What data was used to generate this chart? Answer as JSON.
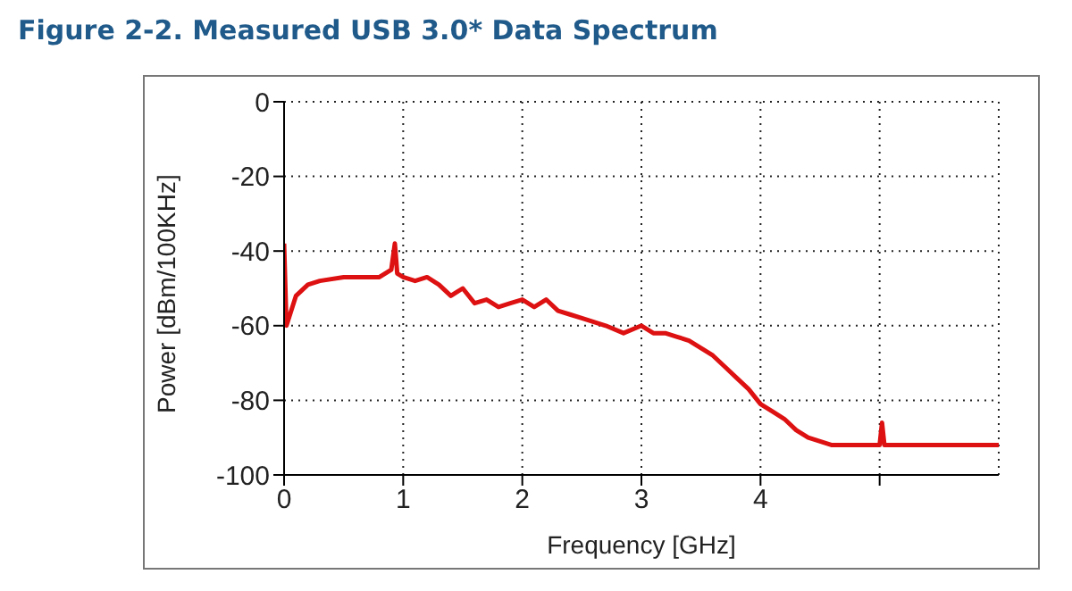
{
  "chart_data": {
    "type": "line",
    "title": "Figure 2-2. Measured USB 3.0* Data Spectrum",
    "xlabel": "Frequency [GHz]",
    "ylabel": "Power [dBm/100KHz]",
    "series": [
      {
        "color": "#dd1111",
        "x": [
          0,
          0.02,
          0.1,
          0.2,
          0.3,
          0.5,
          0.7,
          0.8,
          0.9,
          0.93,
          0.95,
          1.0,
          1.1,
          1.2,
          1.3,
          1.4,
          1.5,
          1.6,
          1.7,
          1.8,
          1.9,
          2.0,
          2.1,
          2.2,
          2.3,
          2.4,
          2.5,
          2.6,
          2.7,
          2.85,
          3.0,
          3.1,
          3.2,
          3.3,
          3.4,
          3.5,
          3.6,
          3.7,
          3.8,
          3.9,
          4.0,
          4.1,
          4.2,
          4.3,
          4.4,
          4.5,
          4.6,
          4.8,
          5.0,
          5.02,
          5.04,
          5.3,
          5.6,
          6.0
        ],
        "values": [
          -38,
          -60,
          -52,
          -49,
          -48,
          -47,
          -47,
          -47,
          -45,
          -38,
          -46,
          -47,
          -48,
          -47,
          -49,
          -52,
          -50,
          -54,
          -53,
          -55,
          -54,
          -53,
          -55,
          -53,
          -56,
          -57,
          -58,
          -59,
          -60,
          -62,
          -60,
          -62,
          -62,
          -63,
          -64,
          -66,
          -68,
          -71,
          -74,
          -77,
          -81,
          -83,
          -85,
          -88,
          -90,
          -91,
          -92,
          -92,
          -92,
          -86,
          -92,
          -92,
          -92,
          -92
        ]
      }
    ],
    "xlim": [
      0,
      6
    ],
    "xticks": [
      0,
      1,
      2,
      3,
      4,
      {
        "value": 5,
        "label": null
      }
    ],
    "ylim": [
      -100,
      0
    ],
    "yticks": [
      -100,
      -80,
      -60,
      -40,
      -20,
      0
    ],
    "grid": true,
    "marker": "none",
    "line_style": "solid"
  }
}
